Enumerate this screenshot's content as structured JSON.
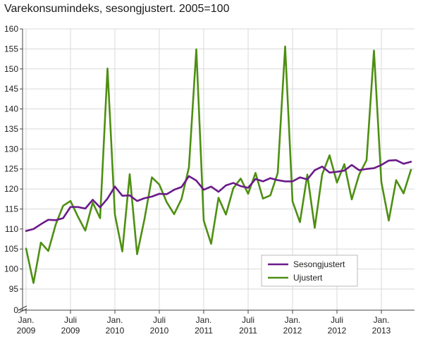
{
  "chart_data": {
    "type": "line",
    "title": "Varekonsumindeks, sesongjustert. 2005=100",
    "ylim": [
      0,
      160
    ],
    "y_axis_break": [
      0,
      95
    ],
    "y_ticks": [
      0,
      95,
      100,
      105,
      110,
      115,
      120,
      125,
      130,
      135,
      140,
      145,
      150,
      155,
      160
    ],
    "x_tick_labels": [
      {
        "index": 0,
        "line1": "Jan.",
        "line2": "2009"
      },
      {
        "index": 6,
        "line1": "Juli",
        "line2": "2009"
      },
      {
        "index": 12,
        "line1": "Jan.",
        "line2": "2010"
      },
      {
        "index": 18,
        "line1": "Juli",
        "line2": "2010"
      },
      {
        "index": 24,
        "line1": "Jan.",
        "line2": "2011"
      },
      {
        "index": 30,
        "line1": "Juli",
        "line2": "2011"
      },
      {
        "index": 36,
        "line1": "Jan.",
        "line2": "2012"
      },
      {
        "index": 42,
        "line1": "Juli",
        "line2": "2012"
      },
      {
        "index": 48,
        "line1": "Jan.",
        "line2": "2013"
      }
    ],
    "grid": true,
    "legend_position": "bottom-right",
    "series": [
      {
        "name": "Sesongjustert",
        "color": "#6b1a8a",
        "values": [
          109.5,
          110.0,
          111.2,
          112.3,
          112.2,
          112.7,
          115.5,
          115.5,
          115.1,
          117.3,
          115.4,
          117.6,
          120.6,
          118.3,
          118.4,
          117.0,
          117.7,
          118.1,
          118.8,
          118.7,
          119.8,
          120.5,
          123.2,
          122.1,
          119.8,
          120.6,
          119.3,
          120.9,
          121.5,
          120.7,
          120.3,
          122.5,
          121.9,
          122.7,
          122.2,
          121.9,
          121.9,
          122.9,
          122.4,
          124.7,
          125.6,
          124.1,
          124.3,
          124.6,
          126.0,
          124.7,
          125.0,
          125.2,
          126.0,
          127.1,
          127.2,
          126.3,
          126.8
        ]
      },
      {
        "name": "Ujustert",
        "color": "#4e8f12",
        "values": [
          105.1,
          96.5,
          106.6,
          104.5,
          111.1,
          115.8,
          117.0,
          113.1,
          109.6,
          116.6,
          112.7,
          150.1,
          113.6,
          104.4,
          123.7,
          103.7,
          112.5,
          122.9,
          121.1,
          116.7,
          113.7,
          117.5,
          125.4,
          154.9,
          112.1,
          106.3,
          117.8,
          113.6,
          120.2,
          122.6,
          118.8,
          124.0,
          117.6,
          118.4,
          124.0,
          155.6,
          116.9,
          111.7,
          123.6,
          110.3,
          123.6,
          128.4,
          121.6,
          126.2,
          117.4,
          123.6,
          127.2,
          154.6,
          121.7,
          112.1,
          122.2,
          118.9,
          124.8
        ]
      }
    ]
  }
}
